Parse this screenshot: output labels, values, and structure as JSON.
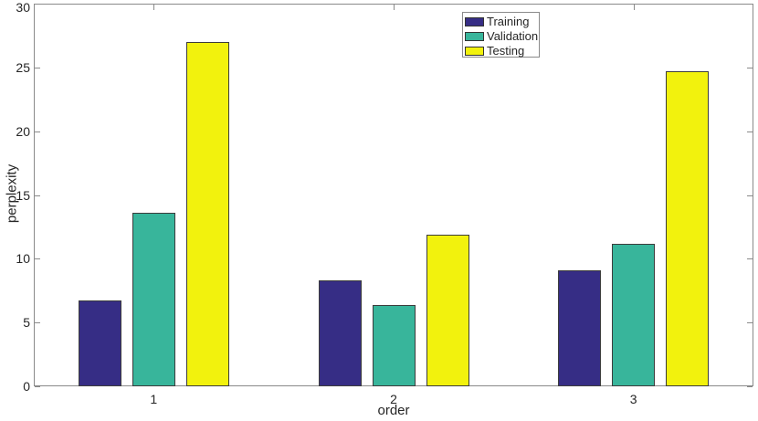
{
  "chart_data": {
    "type": "bar",
    "title": "",
    "xlabel": "order",
    "ylabel": "perplexity",
    "categories": [
      "1",
      "2",
      "3"
    ],
    "series": [
      {
        "name": "Training",
        "color": "#362D85",
        "values": [
          6.7,
          8.3,
          9.1
        ]
      },
      {
        "name": "Validation",
        "color": "#38B59B",
        "values": [
          13.6,
          6.4,
          11.2
        ]
      },
      {
        "name": "Testing",
        "color": "#F2F20D",
        "values": [
          27.0,
          11.9,
          24.7
        ]
      }
    ],
    "ylim": [
      0,
      30
    ],
    "yticks": [
      0,
      5,
      10,
      15,
      20,
      25,
      30
    ],
    "xlim": [
      0.5,
      3.5
    ],
    "grid": false,
    "legend_position": "upper center-right inside plot",
    "legend_entries": [
      "Training",
      "Validation",
      "Testing"
    ],
    "bar_edge_color": "#3c3c3c",
    "axis_line_color": "#8a8a8a",
    "text_color": "#262626",
    "background_color": "#ffffff"
  }
}
